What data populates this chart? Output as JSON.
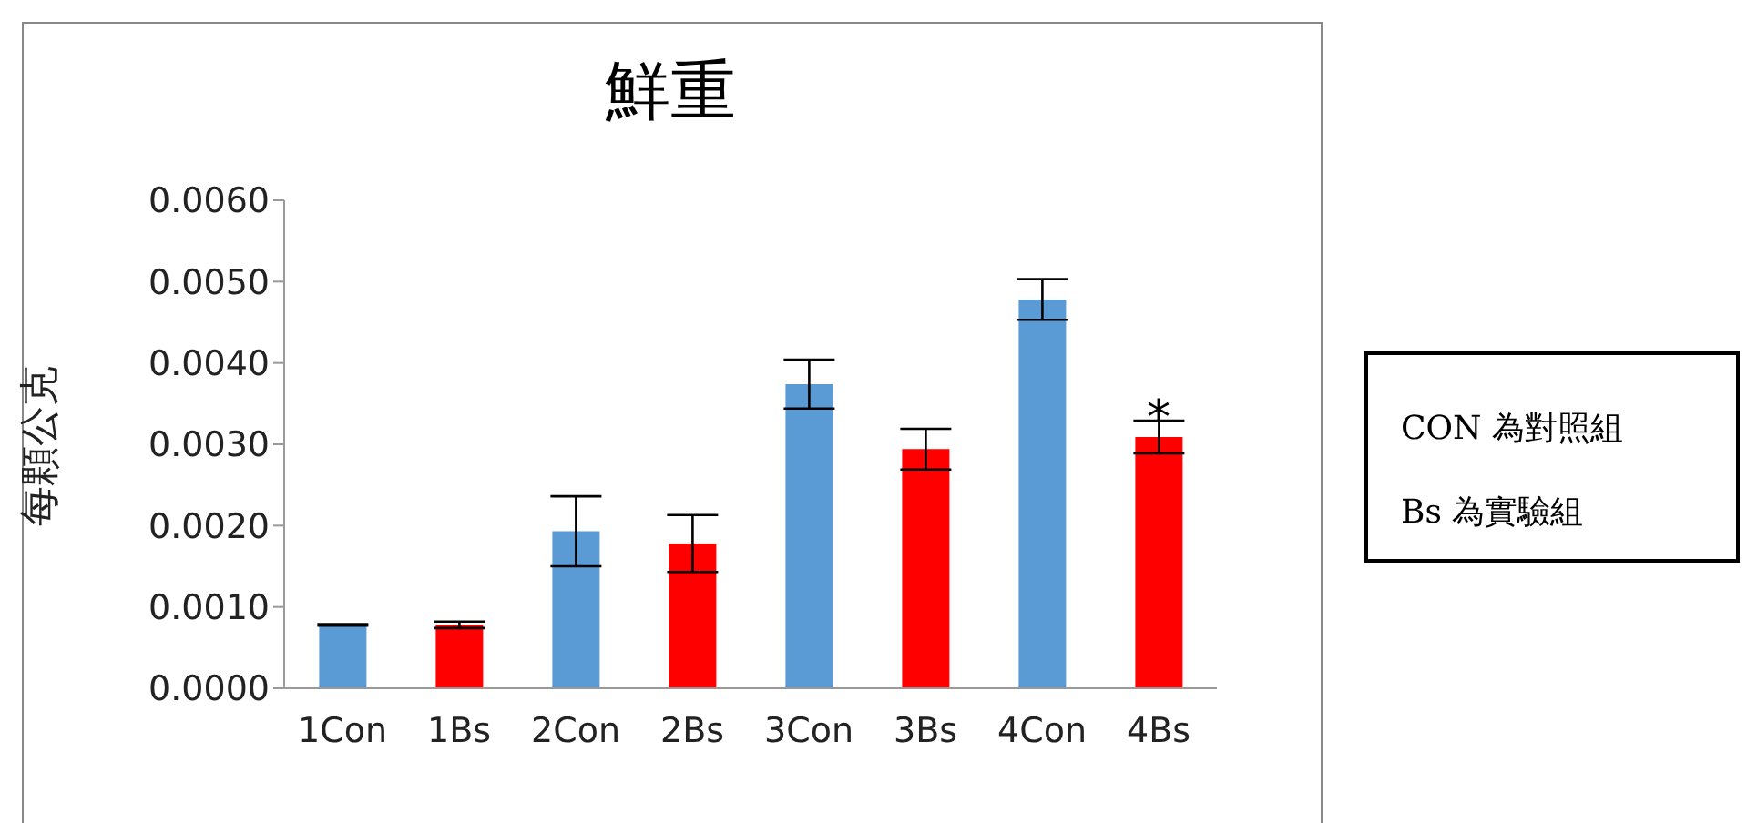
{
  "chart_data": {
    "type": "bar",
    "title": "鮮重",
    "ylabel": "每顆公克",
    "categories": [
      "1Con",
      "1Bs",
      "2Con",
      "2Bs",
      "3Con",
      "3Bs",
      "4Con",
      "4Bs"
    ],
    "values": [
      0.00078,
      0.00078,
      0.00193,
      0.00178,
      0.00374,
      0.00294,
      0.00478,
      0.00309
    ],
    "errors": [
      1e-05,
      4e-05,
      0.00043,
      0.00035,
      0.0003,
      0.00025,
      0.00025,
      0.0002
    ],
    "colors": [
      "#5b9bd5",
      "#ff0000",
      "#5b9bd5",
      "#ff0000",
      "#5b9bd5",
      "#ff0000",
      "#5b9bd5",
      "#ff0000"
    ],
    "ylim": [
      0,
      0.006
    ],
    "yticks": [
      {
        "value": 0,
        "label": "0.0000"
      },
      {
        "value": 0.001,
        "label": "0.0010"
      },
      {
        "value": 0.002,
        "label": "0.0020"
      },
      {
        "value": 0.003,
        "label": "0.0030"
      },
      {
        "value": 0.004,
        "label": "0.0040"
      },
      {
        "value": 0.005,
        "label": "0.0050"
      },
      {
        "value": 0.006,
        "label": "0.0060"
      }
    ],
    "grid": false,
    "legend": false,
    "annotations": [
      {
        "text": "*",
        "x": "4Bs",
        "y": 0.00329
      },
      "CON 為對照組",
      "Bs 為實驗組"
    ]
  }
}
